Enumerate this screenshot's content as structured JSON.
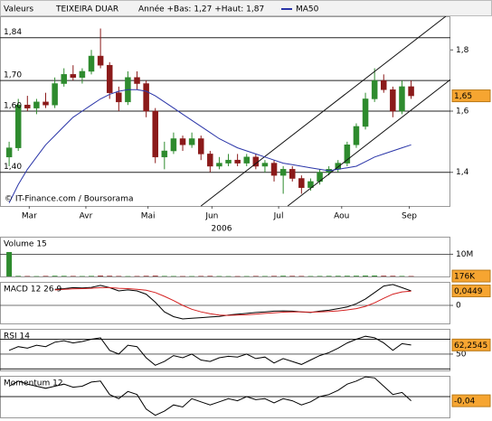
{
  "chart_data": [
    {
      "type": "candlestick",
      "header": "Valeurs",
      "title": "TEIXEIRA DUAR",
      "subtitle": "Année +Bas: 1,27 +Haut: 1,87",
      "watermark": "© IT-Finance.com / Boursorama",
      "year": "2006",
      "up_color": "#2e8b2e",
      "down_color": "#8b1a1a",
      "x": [
        0,
        1,
        2,
        3,
        4,
        5,
        6,
        7,
        8,
        9,
        10,
        11,
        12,
        13,
        14,
        15,
        16,
        17,
        18,
        19,
        20,
        21,
        22,
        23,
        24,
        25,
        26,
        27,
        28,
        29,
        30,
        31,
        32,
        33,
        34,
        35,
        36,
        37,
        38,
        39,
        40,
        41,
        42,
        43,
        44
      ],
      "open": [
        1.45,
        1.48,
        1.62,
        1.61,
        1.63,
        1.62,
        1.69,
        1.72,
        1.71,
        1.73,
        1.78,
        1.75,
        1.66,
        1.63,
        1.71,
        1.69,
        1.6,
        1.45,
        1.47,
        1.51,
        1.49,
        1.51,
        1.46,
        1.42,
        1.43,
        1.44,
        1.43,
        1.45,
        1.42,
        1.43,
        1.39,
        1.41,
        1.38,
        1.35,
        1.37,
        1.4,
        1.41,
        1.43,
        1.49,
        1.55,
        1.64,
        1.7,
        1.67,
        1.6,
        1.68
      ],
      "high": [
        1.5,
        1.64,
        1.65,
        1.64,
        1.66,
        1.71,
        1.74,
        1.75,
        1.74,
        1.8,
        1.87,
        1.76,
        1.68,
        1.73,
        1.73,
        1.7,
        1.61,
        1.5,
        1.53,
        1.52,
        1.53,
        1.52,
        1.47,
        1.45,
        1.46,
        1.46,
        1.46,
        1.46,
        1.44,
        1.44,
        1.42,
        1.42,
        1.39,
        1.38,
        1.41,
        1.42,
        1.44,
        1.5,
        1.56,
        1.66,
        1.74,
        1.72,
        1.68,
        1.7,
        1.7
      ],
      "low": [
        1.42,
        1.47,
        1.6,
        1.59,
        1.61,
        1.61,
        1.68,
        1.7,
        1.69,
        1.72,
        1.74,
        1.64,
        1.6,
        1.62,
        1.67,
        1.58,
        1.43,
        1.41,
        1.46,
        1.47,
        1.48,
        1.44,
        1.4,
        1.41,
        1.42,
        1.42,
        1.42,
        1.41,
        1.4,
        1.37,
        1.33,
        1.37,
        1.33,
        1.34,
        1.36,
        1.39,
        1.4,
        1.42,
        1.48,
        1.54,
        1.63,
        1.66,
        1.58,
        1.59,
        1.64
      ],
      "close": [
        1.48,
        1.62,
        1.61,
        1.63,
        1.62,
        1.69,
        1.72,
        1.71,
        1.73,
        1.78,
        1.75,
        1.66,
        1.63,
        1.71,
        1.69,
        1.6,
        1.45,
        1.47,
        1.51,
        1.49,
        1.51,
        1.46,
        1.42,
        1.43,
        1.44,
        1.43,
        1.45,
        1.42,
        1.43,
        1.39,
        1.41,
        1.38,
        1.35,
        1.37,
        1.4,
        1.41,
        1.43,
        1.49,
        1.55,
        1.64,
        1.7,
        1.67,
        1.6,
        1.68,
        1.65
      ],
      "series": [
        {
          "name": "MA50",
          "color": "#2a35a8",
          "values": [
            1.3,
            1.36,
            1.41,
            1.45,
            1.49,
            1.52,
            1.55,
            1.58,
            1.6,
            1.62,
            1.64,
            1.655,
            1.665,
            1.67,
            1.67,
            1.665,
            1.65,
            1.63,
            1.61,
            1.59,
            1.57,
            1.55,
            1.53,
            1.51,
            1.495,
            1.48,
            1.47,
            1.46,
            1.45,
            1.44,
            1.43,
            1.425,
            1.42,
            1.415,
            1.41,
            1.405,
            1.41,
            1.415,
            1.42,
            1.435,
            1.45,
            1.46,
            1.47,
            1.48,
            1.49
          ]
        }
      ],
      "levels": [
        {
          "value": 1.84,
          "label": "1,84"
        },
        {
          "value": 1.7,
          "label": "1,70"
        },
        {
          "value": 1.6,
          "label": "1,60"
        },
        {
          "value": 1.4,
          "label": "1,40"
        }
      ],
      "trendlines": [
        {
          "x": [
            21,
            47.8
          ],
          "y": [
            1.29,
            1.91
          ]
        },
        {
          "x": [
            30.5,
            48.3
          ],
          "y": [
            1.29,
            1.703
          ]
        }
      ],
      "last": {
        "value": 1.65,
        "label": "1,65"
      },
      "xlim": [
        -1,
        48.3
      ],
      "ylim": [
        1.29,
        1.91
      ],
      "xticks": [
        {
          "value": 2.2,
          "label": "Mar"
        },
        {
          "value": 8.4,
          "label": "Avr"
        },
        {
          "value": 15.2,
          "label": "Mai"
        },
        {
          "value": 22.2,
          "label": "Jun"
        },
        {
          "value": 29.5,
          "label": "Jul"
        },
        {
          "value": 36.4,
          "label": "Aou"
        },
        {
          "value": 43.8,
          "label": "Sep"
        }
      ],
      "yticks": [
        {
          "value": 1.8,
          "label": "1,8"
        },
        {
          "value": 1.6,
          "label": "1,6"
        },
        {
          "value": 1.4,
          "label": "1,4"
        }
      ]
    },
    {
      "type": "bar",
      "title": "Volume 15",
      "values": [
        11000000,
        250000,
        180000,
        150000,
        220000,
        300000,
        260000,
        200000,
        180000,
        240000,
        350000,
        280000,
        200000,
        150000,
        180000,
        260000,
        320000,
        220000,
        180000,
        150000,
        160000,
        200000,
        240000,
        180000,
        150000,
        140000,
        160000,
        200000,
        180000,
        220000,
        300000,
        240000,
        200000,
        180000,
        220000,
        260000,
        280000,
        300000,
        320000,
        380000,
        400000,
        300000,
        260000,
        220000,
        176000
      ],
      "ylim": [
        0,
        17900000
      ],
      "yticks": [
        {
          "value": 10000000,
          "label": "10M"
        }
      ],
      "last": {
        "value": 176000,
        "label": "176K"
      }
    },
    {
      "type": "line",
      "title": "MACD 12 26 9",
      "series": [
        {
          "color": "#000000",
          "values": [
            null,
            null,
            null,
            null,
            null,
            0.05,
            0.052,
            0.055,
            0.054,
            0.056,
            0.062,
            0.055,
            0.045,
            0.048,
            0.045,
            0.035,
            0.01,
            -0.02,
            -0.035,
            -0.042,
            -0.04,
            -0.038,
            -0.036,
            -0.034,
            -0.03,
            -0.027,
            -0.025,
            -0.022,
            -0.02,
            -0.018,
            -0.017,
            -0.018,
            -0.02,
            -0.022,
            -0.018,
            -0.015,
            -0.01,
            -0.005,
            0.005,
            0.02,
            0.04,
            0.06,
            0.065,
            0.055,
            0.0449
          ]
        },
        {
          "color": "#d42020",
          "values": [
            null,
            null,
            null,
            null,
            null,
            0.048,
            0.05,
            0.051,
            0.052,
            0.053,
            0.055,
            0.055,
            0.053,
            0.052,
            0.05,
            0.047,
            0.04,
            0.028,
            0.015,
            0.0,
            -0.012,
            -0.02,
            -0.026,
            -0.03,
            -0.031,
            -0.03,
            -0.029,
            -0.027,
            -0.025,
            -0.023,
            -0.021,
            -0.02,
            -0.02,
            -0.021,
            -0.02,
            -0.019,
            -0.017,
            -0.014,
            -0.01,
            -0.003,
            0.008,
            0.022,
            0.035,
            0.042,
            0.044
          ]
        }
      ],
      "ylim": [
        -0.056,
        0.073
      ],
      "yticks": [
        0
      ],
      "last": {
        "value": 0.0449,
        "label": "0,0449"
      }
    },
    {
      "type": "line",
      "title": "RSI 14",
      "series": [
        {
          "color": "#000000",
          "values": [
            55,
            60,
            58,
            62,
            60,
            66,
            68,
            65,
            67,
            70,
            72,
            55,
            50,
            62,
            60,
            45,
            35,
            40,
            48,
            45,
            50,
            42,
            40,
            45,
            47,
            46,
            50,
            44,
            46,
            38,
            44,
            40,
            36,
            42,
            48,
            52,
            58,
            65,
            70,
            74,
            72,
            65,
            55,
            64,
            62.2545
          ]
        }
      ],
      "ylim": [
        28,
        84
      ],
      "yticks": [
        50
      ],
      "levels": [
        70,
        30
      ],
      "last": {
        "value": 62.2545,
        "label": "62,2545"
      }
    },
    {
      "type": "line",
      "title": "Momentum 12",
      "series": [
        {
          "color": "#000000",
          "values": [
            0.1,
            0.15,
            0.12,
            0.1,
            0.08,
            0.1,
            0.12,
            0.09,
            0.1,
            0.14,
            0.15,
            0.02,
            -0.02,
            0.05,
            0.02,
            -0.12,
            -0.18,
            -0.14,
            -0.08,
            -0.1,
            -0.02,
            -0.05,
            -0.08,
            -0.05,
            -0.02,
            -0.04,
            0.0,
            -0.03,
            -0.02,
            -0.06,
            -0.02,
            -0.04,
            -0.08,
            -0.05,
            0.0,
            0.02,
            0.06,
            0.12,
            0.15,
            0.19,
            0.18,
            0.1,
            0.02,
            0.04,
            -0.04
          ]
        }
      ],
      "ylim": [
        -0.2,
        0.2
      ],
      "levels": [
        0
      ],
      "last": {
        "value": -0.04,
        "label": "-0,04"
      }
    }
  ]
}
